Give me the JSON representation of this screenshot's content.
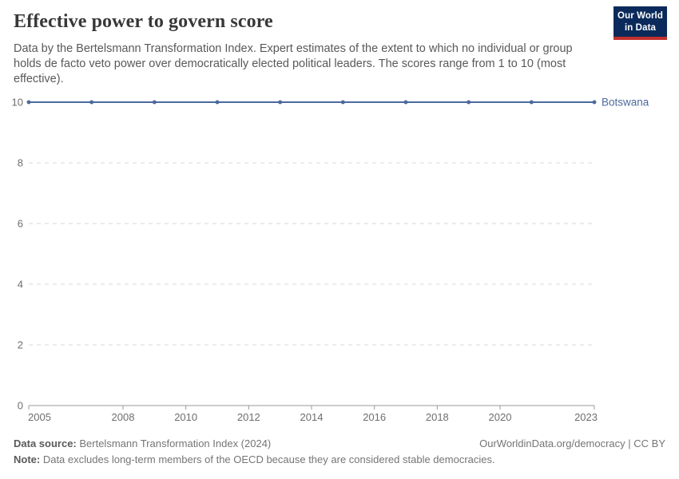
{
  "header": {
    "title": "Effective power to govern score",
    "subtitle": "Data by the Bertelsmann Transformation Index. Expert estimates of the extent to which no individual or group holds de facto veto power over democratically elected political leaders. The scores range from 1 to 10 (most effective).",
    "logo": {
      "line1": "Our World",
      "line2": "in Data"
    }
  },
  "chart_data": {
    "type": "line",
    "title": "Effective power to govern score",
    "x": [
      2005,
      2007,
      2009,
      2011,
      2013,
      2015,
      2017,
      2019,
      2021,
      2023
    ],
    "series": [
      {
        "name": "Botswana",
        "values": [
          10,
          10,
          10,
          10,
          10,
          10,
          10,
          10,
          10,
          10
        ]
      }
    ],
    "xlim": [
      2005,
      2023
    ],
    "ylim": [
      0,
      10
    ],
    "xticks": [
      2005,
      2008,
      2010,
      2012,
      2014,
      2016,
      2018,
      2020,
      2023
    ],
    "yticks": [
      0,
      2,
      4,
      6,
      8,
      10
    ],
    "grid": "horizontal-dashed",
    "legend_position": "end-of-line"
  },
  "footer": {
    "source_label": "Data source:",
    "source_text": " Bertelsmann Transformation Index (2024)",
    "rights_text": "OurWorldinData.org/democracy | CC BY",
    "note_label": "Note:",
    "note_text": " Data excludes long-term members of the OECD because they are considered stable democracies."
  },
  "colors": {
    "line": "#4d6a9d",
    "grid": "#d9d9d9",
    "axis": "#999999",
    "tick_label": "#6e6e6e",
    "entity_label": "#4d6a9d",
    "logo_bg": "#0b2a5b",
    "logo_underline": "#c2302d"
  }
}
